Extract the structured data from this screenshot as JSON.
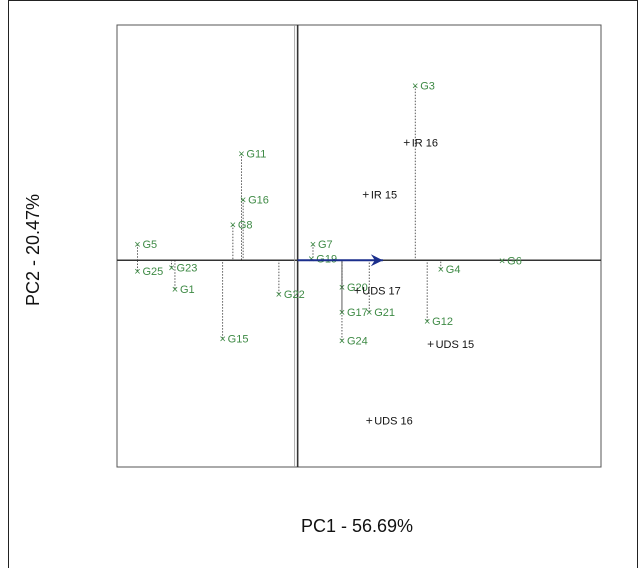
{
  "chart_data": {
    "type": "scatter",
    "subtype": "biplot",
    "xlabel": "PC1 - 56.69%",
    "ylabel": "PC2 - 20.47%",
    "xlim": [
      -5.3,
      8.9
    ],
    "ylim": [
      -5.8,
      6.6
    ],
    "grid": false,
    "genotypes": [
      {
        "label": "G3",
        "x": 3.45,
        "y": 4.9
      },
      {
        "label": "G11",
        "x": -1.65,
        "y": 3.0
      },
      {
        "label": "G16",
        "x": -1.6,
        "y": 1.7
      },
      {
        "label": "G8",
        "x": -1.9,
        "y": 1.0
      },
      {
        "label": "G5",
        "x": -4.7,
        "y": 0.45
      },
      {
        "label": "G7",
        "x": 0.45,
        "y": 0.45
      },
      {
        "label": "G19",
        "x": 0.4,
        "y": 0.05
      },
      {
        "label": "G6",
        "x": 6.0,
        "y": 0.0
      },
      {
        "label": "G4",
        "x": 4.2,
        "y": -0.25
      },
      {
        "label": "G25",
        "x": -4.7,
        "y": -0.3
      },
      {
        "label": "G23",
        "x": -3.7,
        "y": -0.2
      },
      {
        "label": "G1",
        "x": -3.6,
        "y": -0.8
      },
      {
        "label": "G22",
        "x": -0.55,
        "y": -0.95
      },
      {
        "label": "G20",
        "x": 1.3,
        "y": -0.75
      },
      {
        "label": "G17",
        "x": 1.3,
        "y": -1.45
      },
      {
        "label": "G21",
        "x": 2.1,
        "y": -1.45
      },
      {
        "label": "G12",
        "x": 3.8,
        "y": -1.7
      },
      {
        "label": "G15",
        "x": -2.2,
        "y": -2.2
      },
      {
        "label": "G24",
        "x": 1.3,
        "y": -2.25
      }
    ],
    "environments": [
      {
        "label": "IR 16",
        "x": 3.2,
        "y": 3.3
      },
      {
        "label": "IR 15",
        "x": 2.0,
        "y": 1.85
      },
      {
        "label": "UDS 17",
        "x": 1.75,
        "y": -0.85
      },
      {
        "label": "UDS 15",
        "x": 3.9,
        "y": -2.35
      },
      {
        "label": "UDS 16",
        "x": 2.1,
        "y": -4.5
      }
    ],
    "arrow": {
      "x": 2.5,
      "y": 0.0
    }
  }
}
